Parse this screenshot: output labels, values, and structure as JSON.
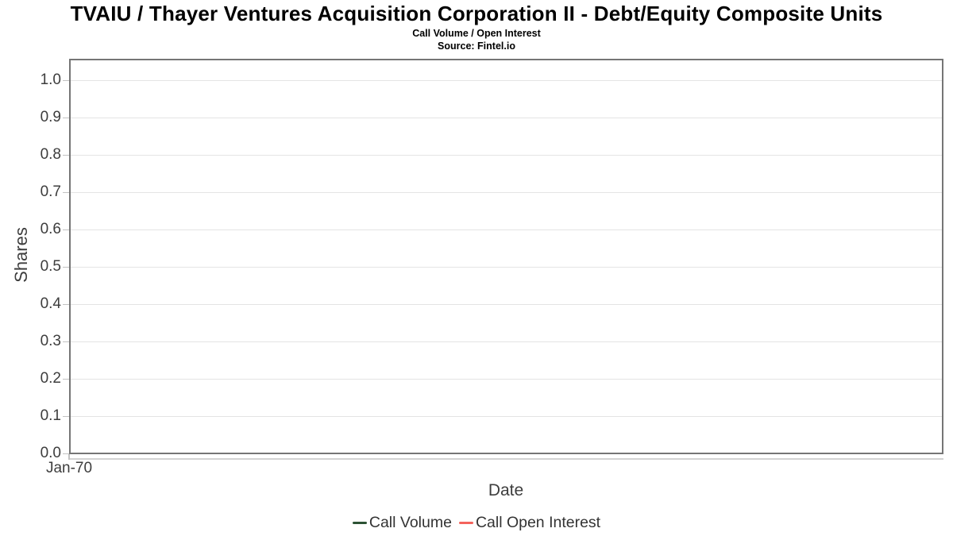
{
  "chart_data": {
    "type": "line",
    "title": "TVAIU / Thayer Ventures Acquisition Corporation II - Debt/Equity Composite Units",
    "subtitle": "Call Volume / Open Interest",
    "source_label": "Source: Fintel.io",
    "xlabel": "Date",
    "ylabel": "Shares",
    "x_tick_labels": [
      "Jan-70"
    ],
    "y_tick_labels": [
      "0.0",
      "0.1",
      "0.2",
      "0.3",
      "0.4",
      "0.5",
      "0.6",
      "0.7",
      "0.8",
      "0.9",
      "1.0"
    ],
    "ylim": [
      0.0,
      1.06
    ],
    "grid": "horizontal",
    "legend_position": "bottom-center",
    "series": [
      {
        "name": "Call Volume",
        "color": "#2c5234",
        "x": [],
        "values": []
      },
      {
        "name": "Call Open Interest",
        "color": "#f4635c",
        "x": [],
        "values": []
      }
    ]
  }
}
